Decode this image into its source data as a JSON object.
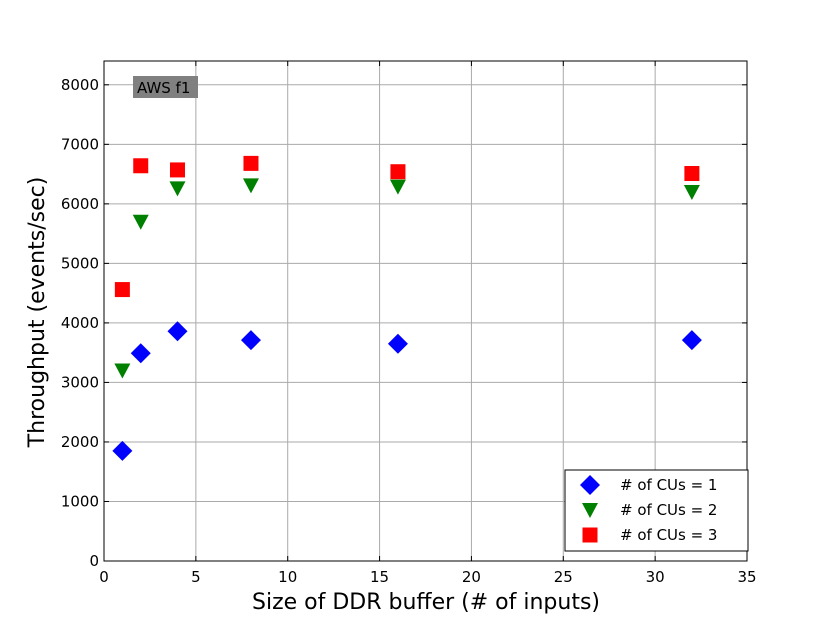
{
  "chart_data": {
    "type": "scatter",
    "title": "",
    "xlabel": "Size of DDR buffer (# of inputs)",
    "ylabel": "Throughput (events/sec)",
    "xlim": [
      0,
      35
    ],
    "ylim": [
      0,
      8400
    ],
    "xticks": [
      0,
      5,
      10,
      15,
      20,
      25,
      30,
      35
    ],
    "yticks": [
      0,
      1000,
      2000,
      3000,
      4000,
      5000,
      6000,
      7000,
      8000
    ],
    "grid": true,
    "annotation": "AWS f1",
    "legend_position": "lower-right",
    "series": [
      {
        "name": "# of CUs = 1",
        "marker": "diamond",
        "color": "#0000ff",
        "x": [
          1,
          2,
          4,
          8,
          16,
          32
        ],
        "y": [
          1850,
          3490,
          3860,
          3710,
          3650,
          3710
        ]
      },
      {
        "name": "# of CUs = 2",
        "marker": "triangle-down",
        "color": "#008000",
        "x": [
          1,
          2,
          4,
          8,
          16,
          32
        ],
        "y": [
          3200,
          5700,
          6260,
          6310,
          6290,
          6200
        ]
      },
      {
        "name": "# of CUs = 3",
        "marker": "square",
        "color": "#ff0000",
        "x": [
          1,
          2,
          4,
          8,
          16,
          32
        ],
        "y": [
          4560,
          6640,
          6570,
          6680,
          6540,
          6510
        ]
      }
    ]
  }
}
